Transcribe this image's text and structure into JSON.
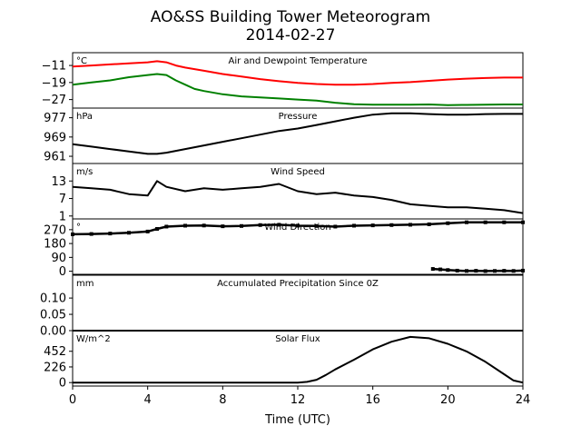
{
  "chart_data": {
    "title": "AO&SS Building Tower Meteorogram",
    "subtitle": "2014-02-27",
    "xlabel": "Time (UTC)",
    "xlim": [
      0,
      24
    ],
    "xticks": [
      0,
      4,
      8,
      12,
      16,
      20,
      24
    ],
    "panels": [
      {
        "type": "line",
        "title": "Air and Dewpoint Temperature",
        "unit": "°C",
        "ylim": [
          -31,
          -5
        ],
        "yticks": [
          -11,
          -19,
          -27
        ],
        "series": [
          {
            "color": "#ff0000",
            "x": [
              0,
              1,
              2,
              3,
              4,
              4.5,
              5,
              5.5,
              6,
              7,
              8,
              9,
              10,
              11,
              12,
              13,
              14,
              15,
              16,
              17,
              18,
              19,
              20,
              21,
              22,
              23,
              24
            ],
            "y": [
              -11.5,
              -11,
              -10.5,
              -10,
              -9.5,
              -9,
              -9.5,
              -11,
              -12,
              -13.5,
              -15,
              -16.2,
              -17.4,
              -18.4,
              -19.2,
              -19.7,
              -20,
              -20,
              -19.7,
              -19.2,
              -18.8,
              -18.2,
              -17.6,
              -17.2,
              -16.9,
              -16.7,
              -16.7
            ]
          },
          {
            "color": "#008000",
            "x": [
              0,
              1,
              2,
              3,
              4,
              4.5,
              5,
              5.5,
              6,
              6.5,
              7,
              8,
              9,
              10,
              11,
              12,
              13,
              14,
              15,
              16,
              17,
              18,
              19,
              20,
              21,
              22,
              23,
              24
            ],
            "y": [
              -20,
              -19,
              -18,
              -16.5,
              -15.5,
              -15,
              -15.5,
              -18,
              -20,
              -22,
              -23,
              -24.5,
              -25.5,
              -26,
              -26.5,
              -27,
              -27.5,
              -28.5,
              -29.2,
              -29.4,
              -29.4,
              -29.4,
              -29.3,
              -29.6,
              -29.5,
              -29.4,
              -29.3,
              -29.3
            ]
          }
        ]
      },
      {
        "type": "line",
        "title": "Pressure",
        "unit": "hPa",
        "ylim": [
          958,
          981
        ],
        "yticks": [
          977,
          969,
          961
        ],
        "series": [
          {
            "color": "#000000",
            "x": [
              0,
              1,
              2,
              3,
              4,
              4.5,
              5,
              6,
              7,
              8,
              9,
              10,
              11,
              12,
              13,
              14,
              15,
              16,
              17,
              18,
              19,
              20,
              21,
              22,
              23,
              24
            ],
            "y": [
              966,
              965,
              964,
              963,
              962,
              962,
              962.5,
              964,
              965.5,
              967,
              968.5,
              970,
              971.5,
              972.5,
              974,
              975.5,
              977,
              978.3,
              978.8,
              978.8,
              978.5,
              978.3,
              978.3,
              978.5,
              978.6,
              978.6
            ]
          }
        ]
      },
      {
        "type": "line",
        "title": "Wind Speed",
        "unit": "m/s",
        "ylim": [
          0,
          19
        ],
        "yticks": [
          13,
          7,
          1
        ],
        "series": [
          {
            "color": "#000000",
            "x": [
              0,
              1,
              2,
              3,
              4,
              4.5,
              5,
              6,
              7,
              8,
              9,
              10,
              11,
              12,
              13,
              14,
              15,
              16,
              17,
              18,
              19,
              20,
              21,
              22,
              23,
              24
            ],
            "y": [
              11,
              10.5,
              10,
              8.5,
              8,
              13,
              11,
              9.5,
              10.5,
              10,
              10.5,
              11,
              12,
              9.5,
              8.5,
              9,
              8,
              7.5,
              6.5,
              5,
              4.5,
              4,
              4,
              3.5,
              3,
              2
            ]
          }
        ]
      },
      {
        "type": "scatter",
        "title": "Wind Direction",
        "unit": "°",
        "ylim": [
          -20,
          340
        ],
        "yticks": [
          270,
          180,
          90,
          0
        ],
        "series": [
          {
            "color": "#000000",
            "x": [
              0,
              1,
              2,
              3,
              4,
              4.5,
              5,
              6,
              7,
              8,
              9,
              10,
              11,
              12,
              13,
              14,
              15,
              16,
              17,
              18,
              19,
              20,
              21,
              22,
              23,
              24
            ],
            "y": [
              240,
              242,
              245,
              250,
              258,
              275,
              290,
              296,
              297,
              292,
              294,
              300,
              302,
              296,
              294,
              290,
              296,
              298,
              300,
              302,
              305,
              312,
              318,
              318,
              318,
              318
            ]
          },
          {
            "color": "#000000",
            "x": [
              19.2,
              19.6,
              20,
              20.5,
              21,
              21.5,
              22,
              22.5,
              23,
              23.5,
              24
            ],
            "y": [
              15,
              12,
              8,
              4,
              2,
              3,
              1,
              2,
              3,
              2,
              4
            ]
          }
        ]
      },
      {
        "type": "line",
        "title": "Accumulated Precipitation Since 0Z",
        "unit": "mm",
        "ylim": [
          0,
          0.17
        ],
        "yticks": [
          0.1,
          0.05,
          0.0
        ],
        "series": [
          {
            "color": "#000000",
            "x": [
              0,
              24
            ],
            "y": [
              0,
              0
            ]
          }
        ]
      },
      {
        "type": "line",
        "title": "Solar Flux",
        "unit": "W/m^2",
        "ylim": [
          -50,
          750
        ],
        "yticks": [
          452,
          226,
          0
        ],
        "series": [
          {
            "color": "#000000",
            "x": [
              0,
              12,
              12.5,
              13,
              13.5,
              14,
              15,
              16,
              17,
              18,
              19,
              20,
              21,
              22,
              23,
              23.5,
              24
            ],
            "y": [
              0,
              0,
              10,
              40,
              110,
              190,
              330,
              480,
              590,
              660,
              640,
              560,
              450,
              300,
              120,
              30,
              0
            ]
          }
        ]
      }
    ]
  }
}
